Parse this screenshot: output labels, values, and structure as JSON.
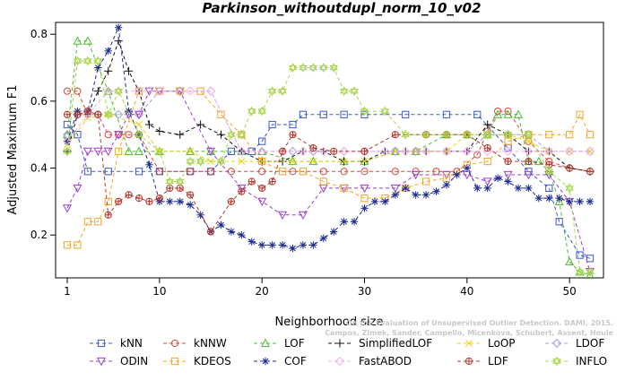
{
  "chart_data": {
    "type": "line",
    "title": "Parkinson_withoutdupl_norm_10_v02",
    "xlabel": "Neighborhood size",
    "ylabel": "Adjusted Maximum F1",
    "xlim": [
      1,
      52
    ],
    "ylim": [
      0.08,
      0.83
    ],
    "x_ticks": [
      1,
      10,
      20,
      30,
      40,
      50
    ],
    "y_ticks": [
      0.2,
      0.4,
      0.6,
      0.8
    ],
    "x_tick_labels": [
      "1",
      "10",
      "20",
      "30",
      "40",
      "50"
    ],
    "y_tick_labels": [
      "0.2",
      "0.4",
      "0.6",
      "0.8"
    ],
    "legend_position": "bottom",
    "credit_lines": [
      "Campos, Zimek, Sander, Campello, Micenkova, Schubert, Assent, Houle",
      "On the Evaluation of Unsupervised Outlier Detection. DAMI, 2015."
    ],
    "series": [
      {
        "name": "kNN",
        "color": "#3a56d8",
        "marker": "square",
        "x": [
          1,
          2,
          3,
          5,
          8,
          10,
          13,
          15,
          17,
          19,
          20,
          21,
          23,
          24,
          26,
          28,
          30,
          34,
          38,
          41,
          44,
          46,
          48,
          49,
          51,
          52
        ],
        "y": [
          0.53,
          0.5,
          0.39,
          0.39,
          0.39,
          0.39,
          0.39,
          0.39,
          0.45,
          0.45,
          0.48,
          0.53,
          0.53,
          0.56,
          0.56,
          0.56,
          0.56,
          0.56,
          0.56,
          0.56,
          0.46,
          0.39,
          0.34,
          0.24,
          0.14,
          0.13
        ]
      },
      {
        "name": "kNNW",
        "color": "#d34b3a",
        "marker": "circle",
        "x": [
          1,
          2,
          3,
          4,
          5,
          6,
          7,
          8,
          10,
          13,
          15,
          17,
          20,
          23,
          26,
          28,
          30,
          33,
          35,
          37,
          39,
          41,
          42,
          43,
          44,
          46,
          48,
          50,
          52
        ],
        "y": [
          0.63,
          0.63,
          0.56,
          0.56,
          0.5,
          0.5,
          0.5,
          0.5,
          0.39,
          0.39,
          0.39,
          0.39,
          0.39,
          0.39,
          0.39,
          0.39,
          0.39,
          0.39,
          0.39,
          0.39,
          0.39,
          0.44,
          0.51,
          0.57,
          0.57,
          0.48,
          0.42,
          0.4,
          0.39
        ]
      },
      {
        "name": "LOF",
        "color": "#4fb83a",
        "marker": "triangle-up",
        "x": [
          1,
          2,
          3,
          5,
          7,
          8,
          10,
          13,
          15,
          18,
          20,
          23,
          25,
          28,
          30,
          33,
          35,
          38,
          40,
          42,
          43,
          44,
          45,
          46,
          47,
          48,
          49,
          50,
          51,
          52
        ],
        "y": [
          0.5,
          0.78,
          0.78,
          0.63,
          0.45,
          0.45,
          0.45,
          0.45,
          0.45,
          0.45,
          0.45,
          0.42,
          0.42,
          0.42,
          0.42,
          0.45,
          0.45,
          0.5,
          0.5,
          0.5,
          0.56,
          0.56,
          0.56,
          0.42,
          0.42,
          0.39,
          0.3,
          0.12,
          0.09,
          0.08
        ]
      },
      {
        "name": "SimplifiedLOF",
        "color": "#111111",
        "marker": "plus",
        "x": [
          1,
          2,
          3,
          4,
          5,
          6,
          7,
          8,
          9,
          10,
          12,
          14,
          16,
          18,
          20,
          22,
          24,
          26,
          28,
          30,
          32,
          34,
          36,
          38,
          40,
          42,
          44,
          46,
          48,
          50,
          52
        ],
        "y": [
          0.45,
          0.56,
          0.56,
          0.63,
          0.69,
          0.78,
          0.69,
          0.63,
          0.53,
          0.51,
          0.5,
          0.53,
          0.5,
          0.45,
          0.42,
          0.42,
          0.45,
          0.45,
          0.42,
          0.42,
          0.45,
          0.45,
          0.45,
          0.45,
          0.45,
          0.53,
          0.5,
          0.45,
          0.45,
          0.4,
          0.39
        ]
      },
      {
        "name": "LoOP",
        "color": "#e8d20e",
        "marker": "x",
        "x": [
          1,
          3,
          5,
          8,
          10,
          13,
          15,
          18,
          20,
          23,
          25,
          28,
          30,
          33,
          35,
          38,
          40,
          42,
          44,
          46,
          48,
          50,
          52
        ],
        "y": [
          0.47,
          0.55,
          0.56,
          0.53,
          0.45,
          0.45,
          0.42,
          0.42,
          0.42,
          0.42,
          0.42,
          0.42,
          0.42,
          0.45,
          0.45,
          0.45,
          0.5,
          0.5,
          0.5,
          0.48,
          0.45,
          0.45,
          0.45
        ]
      },
      {
        "name": "LDOF",
        "color": "#a79ce0",
        "marker": "diamond",
        "x": [
          1,
          2,
          4,
          6,
          8,
          10,
          12,
          15,
          18,
          20,
          23,
          25,
          28,
          30,
          33,
          35,
          38,
          40,
          42,
          44,
          46,
          48,
          50,
          52
        ],
        "y": [
          0.5,
          0.56,
          0.56,
          0.56,
          0.56,
          0.63,
          0.63,
          0.63,
          0.45,
          0.45,
          0.45,
          0.45,
          0.45,
          0.45,
          0.45,
          0.45,
          0.45,
          0.45,
          0.5,
          0.5,
          0.5,
          0.45,
          0.45,
          0.45
        ]
      },
      {
        "name": "ODIN",
        "color": "#9b3fd0",
        "marker": "triangle-down",
        "x": [
          1,
          2,
          3,
          4,
          5,
          6,
          7,
          8,
          9,
          10,
          12,
          15,
          18,
          20,
          22,
          24,
          26,
          28,
          30,
          33,
          35,
          38,
          40,
          42,
          44,
          46,
          48,
          50,
          52
        ],
        "y": [
          0.28,
          0.34,
          0.45,
          0.45,
          0.45,
          0.5,
          0.56,
          0.56,
          0.63,
          0.63,
          0.63,
          0.45,
          0.34,
          0.3,
          0.26,
          0.26,
          0.34,
          0.34,
          0.34,
          0.34,
          0.38,
          0.38,
          0.38,
          0.36,
          0.38,
          0.38,
          0.38,
          0.3,
          0.09
        ]
      },
      {
        "name": "KDEOS",
        "color": "#f5a623",
        "marker": "square",
        "x": [
          1,
          2,
          3,
          4,
          5,
          6,
          8,
          10,
          12,
          14,
          16,
          18,
          20,
          22,
          24,
          26,
          28,
          30,
          32,
          34,
          36,
          38,
          40,
          42,
          44,
          46,
          48,
          50,
          51,
          52
        ],
        "y": [
          0.17,
          0.17,
          0.24,
          0.24,
          0.3,
          0.45,
          0.63,
          0.63,
          0.63,
          0.63,
          0.56,
          0.5,
          0.42,
          0.39,
          0.39,
          0.36,
          0.34,
          0.31,
          0.31,
          0.34,
          0.36,
          0.37,
          0.41,
          0.42,
          0.48,
          0.5,
          0.5,
          0.5,
          0.56,
          0.5
        ]
      },
      {
        "name": "COF",
        "color": "#1b2a8c",
        "marker": "star",
        "x": [
          1,
          2,
          3,
          4,
          5,
          6,
          7,
          8,
          9,
          10,
          11,
          12,
          13,
          14,
          15,
          16,
          17,
          18,
          19,
          20,
          21,
          22,
          23,
          24,
          25,
          26,
          27,
          28,
          29,
          30,
          31,
          32,
          33,
          34,
          35,
          36,
          37,
          38,
          39,
          40,
          41,
          42,
          43,
          44,
          45,
          46,
          47,
          48,
          49,
          50,
          51,
          52
        ],
        "y": [
          0.48,
          0.57,
          0.57,
          0.7,
          0.75,
          0.82,
          0.57,
          0.5,
          0.41,
          0.3,
          0.3,
          0.3,
          0.29,
          0.26,
          0.21,
          0.23,
          0.21,
          0.2,
          0.18,
          0.17,
          0.17,
          0.17,
          0.16,
          0.17,
          0.17,
          0.19,
          0.21,
          0.24,
          0.24,
          0.28,
          0.3,
          0.3,
          0.32,
          0.34,
          0.32,
          0.32,
          0.33,
          0.35,
          0.38,
          0.4,
          0.34,
          0.34,
          0.37,
          0.36,
          0.34,
          0.34,
          0.31,
          0.31,
          0.31,
          0.3,
          0.3,
          0.3
        ]
      },
      {
        "name": "FastABOD",
        "color": "#f2b0e6",
        "marker": "diamond",
        "x": [
          1,
          3,
          5,
          8,
          10,
          13,
          15,
          18,
          20,
          22,
          24,
          26,
          28,
          30,
          32,
          34,
          36,
          38,
          40,
          42,
          44,
          46,
          48,
          50,
          52
        ],
        "y": [
          0.48,
          0.56,
          0.63,
          0.63,
          0.63,
          0.63,
          0.63,
          0.45,
          0.45,
          0.45,
          0.45,
          0.45,
          0.45,
          0.45,
          0.45,
          0.45,
          0.45,
          0.45,
          0.45,
          0.45,
          0.45,
          0.45,
          0.45,
          0.45,
          0.45
        ]
      },
      {
        "name": "LDF",
        "color": "#b03a2e",
        "marker": "circle-plus",
        "x": [
          1,
          2,
          3,
          4,
          5,
          6,
          7,
          8,
          9,
          10,
          11,
          12,
          13,
          15,
          17,
          18,
          19,
          20,
          21,
          22,
          23,
          25,
          27,
          30,
          33,
          36,
          38,
          40,
          42,
          44,
          46,
          48,
          50,
          52
        ],
        "y": [
          0.56,
          0.56,
          0.57,
          0.56,
          0.26,
          0.3,
          0.32,
          0.31,
          0.3,
          0.31,
          0.34,
          0.34,
          0.32,
          0.21,
          0.3,
          0.33,
          0.36,
          0.34,
          0.36,
          0.45,
          0.5,
          0.46,
          0.45,
          0.45,
          0.5,
          0.5,
          0.5,
          0.5,
          0.46,
          0.42,
          0.42,
          0.41,
          0.4,
          0.39
        ]
      },
      {
        "name": "INFLO",
        "color": "#a7d64a",
        "marker": "star-of-david",
        "x": [
          1,
          2,
          3,
          4,
          5,
          6,
          8,
          10,
          11,
          12,
          13,
          14,
          16,
          17,
          18,
          19,
          20,
          21,
          22,
          23,
          24,
          25,
          26,
          27,
          28,
          29,
          30,
          32,
          34,
          36,
          38,
          40,
          42,
          44,
          46,
          48,
          50,
          51,
          52
        ],
        "y": [
          0.45,
          0.72,
          0.72,
          0.72,
          0.56,
          0.63,
          0.5,
          0.45,
          0.36,
          0.36,
          0.42,
          0.42,
          0.42,
          0.5,
          0.5,
          0.57,
          0.57,
          0.63,
          0.63,
          0.7,
          0.7,
          0.7,
          0.7,
          0.7,
          0.63,
          0.63,
          0.57,
          0.57,
          0.5,
          0.5,
          0.5,
          0.5,
          0.5,
          0.5,
          0.5,
          0.39,
          0.34,
          0.09,
          0.09
        ]
      }
    ]
  }
}
